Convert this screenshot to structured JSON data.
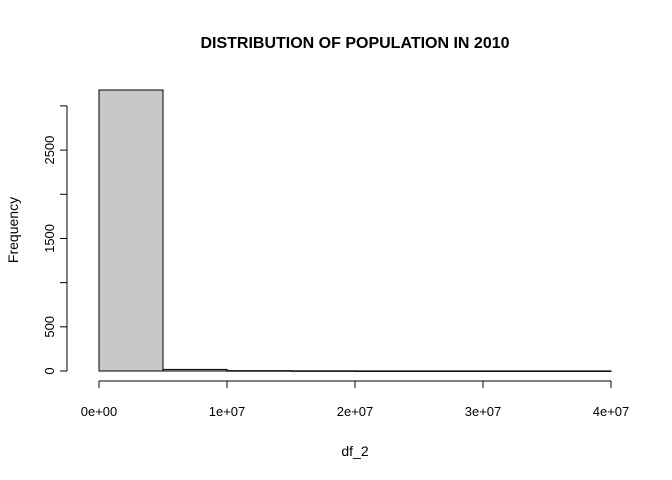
{
  "chart_data": {
    "type": "bar",
    "title": "DISTRIBUTION OF POPULATION IN 2010",
    "xlabel": "df_2",
    "ylabel": "Frequency",
    "bar_fill": "#c8c8c8",
    "bins": [
      {
        "x0": 0,
        "x1": 5000000,
        "count": 3180
      },
      {
        "x0": 5000000,
        "x1": 10000000,
        "count": 18
      },
      {
        "x0": 10000000,
        "x1": 15000000,
        "count": 4
      },
      {
        "x0": 15000000,
        "x1": 20000000,
        "count": 2
      },
      {
        "x0": 20000000,
        "x1": 25000000,
        "count": 1
      },
      {
        "x0": 25000000,
        "x1": 30000000,
        "count": 1
      },
      {
        "x0": 30000000,
        "x1": 35000000,
        "count": 1
      },
      {
        "x0": 35000000,
        "x1": 40000000,
        "count": 1
      }
    ],
    "xticks": [
      0,
      10000000,
      20000000,
      30000000,
      40000000
    ],
    "xtick_labels": [
      "0e+00",
      "1e+07",
      "2e+07",
      "3e+07",
      "4e+07"
    ],
    "yticks": [
      0,
      500,
      1500,
      2500
    ],
    "ytick_labels": [
      "0",
      "500",
      "1500",
      "2500"
    ],
    "xlim": [
      0,
      40000000
    ],
    "ylim": [
      0,
      3180
    ]
  }
}
